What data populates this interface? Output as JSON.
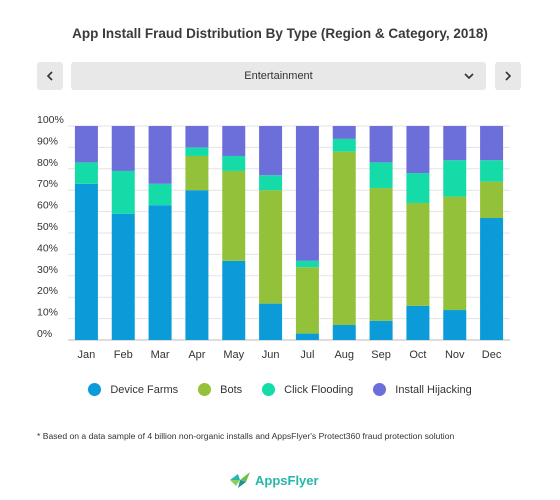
{
  "title": "App Install Fraud Distribution By Type (Region & Category, 2018)",
  "selector": {
    "value": "Entertainment"
  },
  "nav": {
    "prev_icon": "chevron-left-icon",
    "next_icon": "chevron-right-icon"
  },
  "footnote": "* Based on a data sample of 4 billion non-organic installs and AppsFlyer's Protect360 fraud protection solution",
  "logo": {
    "text": "AppsFlyer"
  },
  "colors": {
    "Device Farms": "#0a9bd8",
    "Bots": "#93c23a",
    "Click Flooding": "#15dba8",
    "Install Hijacking": "#6c6fd9"
  },
  "chart_data": {
    "type": "bar",
    "stacked": true,
    "categories": [
      "Jan",
      "Feb",
      "Mar",
      "Apr",
      "May",
      "Jun",
      "Jul",
      "Aug",
      "Sep",
      "Oct",
      "Nov",
      "Dec"
    ],
    "series": [
      {
        "name": "Device Farms",
        "values": [
          73,
          59,
          63,
          70,
          37,
          17,
          3,
          7,
          9,
          16,
          14,
          57
        ]
      },
      {
        "name": "Bots",
        "values": [
          0,
          0,
          0,
          16,
          42,
          53,
          31,
          81,
          62,
          48,
          53,
          17
        ]
      },
      {
        "name": "Click Flooding",
        "values": [
          10,
          20,
          10,
          4,
          7,
          7,
          3,
          6,
          12,
          14,
          17,
          10
        ]
      },
      {
        "name": "Install Hijacking",
        "values": [
          17,
          21,
          27,
          10,
          14,
          23,
          63,
          6,
          17,
          22,
          16,
          16
        ]
      }
    ],
    "ylim": [
      0,
      100
    ],
    "yticks": [
      "0%",
      "10%",
      "20%",
      "30%",
      "40%",
      "50%",
      "60%",
      "70%",
      "80%",
      "90%",
      "100%"
    ],
    "grid": true,
    "legend_position": "bottom"
  }
}
